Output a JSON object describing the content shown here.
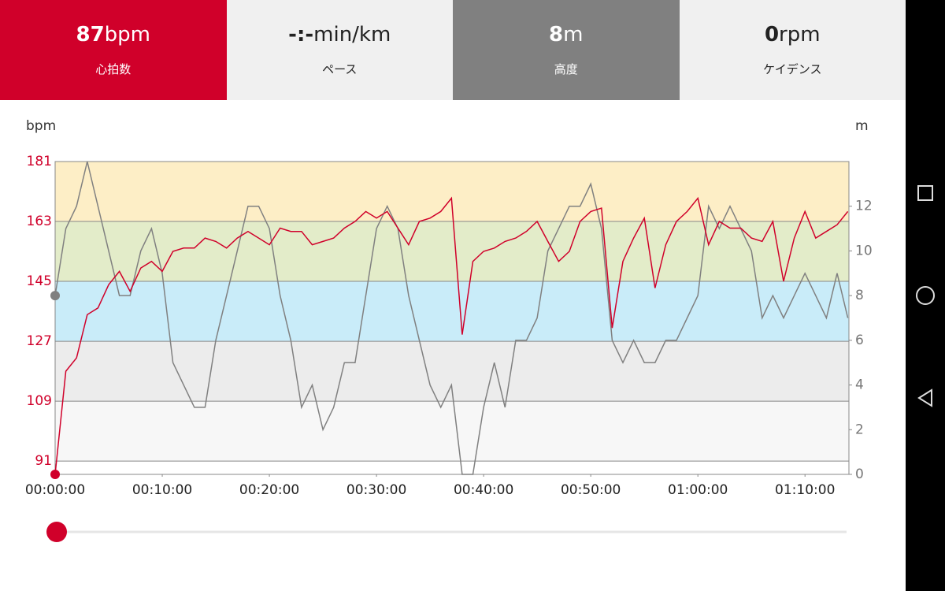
{
  "tabs": [
    {
      "value": "87",
      "unit": "bpm",
      "label": "心拍数"
    },
    {
      "value": "-:-",
      "unit": "min/km",
      "label": "ペース"
    },
    {
      "value": "8",
      "unit": "m",
      "label": "高度"
    },
    {
      "value": "0",
      "unit": "rpm",
      "label": "ケイデンス"
    }
  ],
  "chart_data": {
    "type": "line",
    "y_label": "bpm",
    "y2_label": "m",
    "x": [
      0,
      1,
      2,
      3,
      4,
      5,
      6,
      7,
      8,
      9,
      10,
      11,
      12,
      13,
      14,
      15,
      16,
      17,
      18,
      19,
      20,
      21,
      22,
      23,
      24,
      25,
      26,
      27,
      28,
      29,
      30,
      31,
      32,
      33,
      34,
      35,
      36,
      37,
      38,
      39,
      40,
      41,
      42,
      43,
      44,
      45,
      46,
      47,
      48,
      49,
      50,
      51,
      52,
      53,
      54,
      55,
      56,
      57,
      58,
      59,
      60,
      61,
      62,
      63,
      64,
      65,
      66,
      67,
      68,
      69,
      70,
      71,
      72,
      73,
      74
    ],
    "xlim": [
      0,
      74.1
    ],
    "xticks": [
      {
        "value": 0,
        "label": "00:00:00"
      },
      {
        "value": 10,
        "label": "00:10:00"
      },
      {
        "value": 20,
        "label": "00:20:00"
      },
      {
        "value": 30,
        "label": "00:30:00"
      },
      {
        "value": 40,
        "label": "00:40:00"
      },
      {
        "value": 50,
        "label": "00:50:00"
      },
      {
        "value": 60,
        "label": "01:00:00"
      },
      {
        "value": 70,
        "label": "01:10:00"
      }
    ],
    "ylim": [
      87,
      181
    ],
    "yticks": [
      181,
      163,
      145,
      127,
      109,
      91
    ],
    "y2lim": [
      0,
      14
    ],
    "y2ticks": [
      0,
      2,
      4,
      6,
      8,
      10,
      12
    ],
    "zone_colors": [
      "#f4b8cd",
      "#fdeec6",
      "#e3ecc9",
      "#c9ecf9",
      "#ececec",
      "#f7f7f7"
    ],
    "series": [
      {
        "name": "心拍数",
        "color": "#d0002a",
        "values": [
          87,
          118,
          122,
          135,
          137,
          144,
          148,
          142,
          149,
          151,
          148,
          154,
          155,
          155,
          158,
          157,
          155,
          158,
          160,
          158,
          156,
          161,
          160,
          160,
          156,
          157,
          158,
          161,
          163,
          166,
          164,
          166,
          161,
          156,
          163,
          164,
          166,
          170,
          129,
          151,
          154,
          155,
          157,
          158,
          160,
          163,
          157,
          151,
          154,
          163,
          166,
          167,
          131,
          151,
          158,
          164,
          143,
          156,
          163,
          166,
          170,
          156,
          163,
          161,
          161,
          158,
          157,
          163,
          145,
          158,
          166,
          158,
          160,
          162,
          166
        ]
      },
      {
        "name": "高度",
        "color": "#808080",
        "axis": "y2",
        "values": [
          8,
          11,
          12,
          14,
          12,
          10,
          8,
          8,
          10,
          11,
          9,
          5,
          4,
          3,
          3,
          6,
          8,
          10,
          12,
          12,
          11,
          8,
          6,
          3,
          4,
          2,
          3,
          5,
          5,
          8,
          11,
          12,
          11,
          8,
          6,
          4,
          3,
          4,
          0,
          0,
          3,
          5,
          3,
          6,
          6,
          7,
          10,
          11,
          12,
          12,
          13,
          11,
          6,
          5,
          6,
          5,
          5,
          6,
          6,
          7,
          8,
          12,
          11,
          12,
          11,
          10,
          7,
          8,
          7,
          8,
          9,
          8,
          7,
          9,
          7
        ]
      }
    ]
  }
}
